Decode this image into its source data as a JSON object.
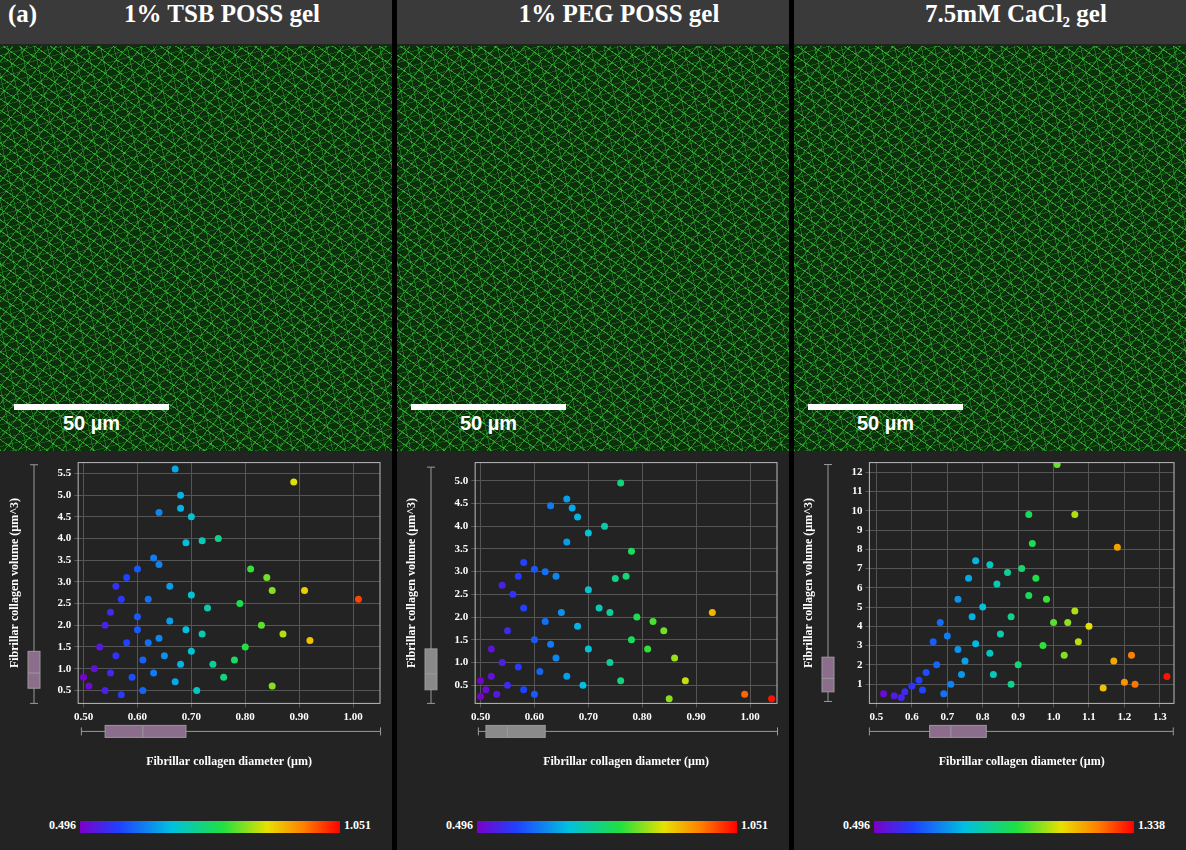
{
  "panel_label": "(a)",
  "images": [
    {
      "title": "1% TSB POSS gel",
      "scale_bar": "50 µm"
    },
    {
      "title": "1% PEG POSS gel",
      "scale_bar": "50 µm"
    },
    {
      "title": "7.5mM CaCl₂ gel",
      "scale_bar": "50 µm"
    }
  ],
  "chart_data": [
    {
      "type": "scatter",
      "marker": "circle",
      "grid": true,
      "color": "#8c6e8c",
      "x_label": "Fibrillar collagen diameter (µm)",
      "y_label": "Fibrillar collagen volume (µm^3)",
      "xlim": [
        0.49,
        1.05
      ],
      "xticks": [
        {
          "value": 0.5,
          "label": "0.50"
        },
        {
          "value": 0.6,
          "label": "0.60"
        },
        {
          "value": 0.7,
          "label": "0.70"
        },
        {
          "value": 0.8,
          "label": "0.80"
        },
        {
          "value": 0.9,
          "label": "0.90"
        },
        {
          "value": 1.0,
          "label": "1.00"
        }
      ],
      "ylim": [
        0.2,
        5.75
      ],
      "yticks": [
        0.5,
        {
          "value": 1.0,
          "label": "1.0"
        },
        1.5,
        {
          "value": 2.0,
          "label": "2.0"
        },
        2.5,
        {
          "value": 3.0,
          "label": "3.0"
        },
        3.5,
        {
          "value": 4.0,
          "label": "4.0"
        },
        4.5,
        {
          "value": 5.0,
          "label": "5.0"
        },
        5.5
      ],
      "x": [
        0.67,
        0.68,
        0.68,
        0.64,
        0.7,
        0.72,
        0.69,
        0.75,
        0.63,
        0.64,
        0.89,
        0.81,
        0.84,
        0.85,
        0.91,
        1.01,
        0.79,
        0.83,
        0.87,
        0.8,
        0.92,
        0.78,
        0.85,
        0.76,
        0.58,
        0.56,
        0.6,
        0.57,
        0.55,
        0.6,
        0.62,
        0.66,
        0.7,
        0.73,
        0.66,
        0.69,
        0.72,
        0.64,
        0.58,
        0.53,
        0.56,
        0.61,
        0.65,
        0.7,
        0.74,
        0.52,
        0.55,
        0.59,
        0.63,
        0.67,
        0.51,
        0.54,
        0.5,
        0.57,
        0.61,
        0.71,
        0.62,
        0.68,
        0.6,
        0.54
      ],
      "values": [
        5.6,
        5.0,
        4.7,
        4.6,
        4.5,
        3.95,
        3.9,
        4.0,
        3.55,
        3.4,
        5.3,
        3.3,
        3.1,
        2.8,
        2.8,
        2.6,
        2.5,
        2.0,
        1.8,
        1.5,
        1.65,
        1.2,
        0.6,
        0.8,
        3.1,
        2.9,
        3.3,
        2.6,
        2.3,
        2.2,
        2.6,
        2.9,
        2.7,
        2.4,
        2.1,
        1.9,
        1.8,
        1.7,
        1.6,
        1.5,
        1.3,
        1.2,
        1.3,
        1.4,
        1.1,
        1.0,
        0.9,
        0.8,
        0.9,
        0.7,
        0.6,
        0.5,
        0.8,
        0.4,
        0.5,
        0.5,
        1.6,
        1.1,
        1.9,
        2.0
      ],
      "x_box": {
        "min": 0.496,
        "q1": 0.54,
        "median": 0.61,
        "q3": 0.69,
        "max": 1.051
      },
      "y_box": {
        "min": 0.2,
        "q1": 0.55,
        "median": 0.9,
        "q3": 1.4,
        "max": 5.7
      },
      "colorbar": {
        "range": [
          0.496,
          1.051
        ],
        "ticks": [
          0.496,
          1.051
        ]
      }
    },
    {
      "type": "scatter",
      "marker": "circle",
      "grid": true,
      "color": "#8a8a8a",
      "x_label": "Fibrillar collagen diameter (µm)",
      "y_label": "Fibrillar collagen volume (µm^3)",
      "xlim": [
        0.49,
        1.05
      ],
      "xticks": [
        {
          "value": 0.5,
          "label": "0.50"
        },
        {
          "value": 0.6,
          "label": "0.60"
        },
        {
          "value": 0.7,
          "label": "0.70"
        },
        {
          "value": 0.8,
          "label": "0.80"
        },
        {
          "value": 0.9,
          "label": "0.90"
        },
        {
          "value": 1.0,
          "label": "1.00"
        }
      ],
      "ylim": [
        0.1,
        5.4
      ],
      "yticks": [
        0.5,
        {
          "value": 1.0,
          "label": "1.0"
        },
        1.5,
        {
          "value": 2.0,
          "label": "2.0"
        },
        2.5,
        {
          "value": 3.0,
          "label": "3.0"
        },
        3.5,
        {
          "value": 4.0,
          "label": "4.0"
        },
        4.5,
        {
          "value": 5.0,
          "label": "5.0"
        }
      ],
      "x": [
        0.66,
        0.67,
        0.68,
        0.63,
        0.7,
        0.73,
        0.76,
        0.78,
        0.66,
        0.6,
        0.62,
        0.64,
        0.75,
        0.77,
        0.7,
        0.72,
        0.74,
        0.79,
        0.82,
        0.84,
        0.93,
        0.86,
        0.81,
        0.88,
        0.99,
        1.04,
        0.78,
        0.68,
        0.65,
        0.62,
        0.58,
        0.56,
        0.55,
        0.6,
        0.63,
        0.7,
        0.74,
        0.52,
        0.54,
        0.57,
        0.61,
        0.66,
        0.5,
        0.51,
        0.53,
        0.52,
        0.55,
        0.58,
        0.5,
        0.6,
        0.64,
        0.69,
        0.54,
        0.58,
        0.57,
        0.85,
        0.76
      ],
      "values": [
        4.6,
        4.4,
        4.2,
        4.45,
        3.85,
        4.0,
        4.95,
        3.45,
        3.65,
        3.05,
        3.0,
        2.9,
        2.85,
        2.9,
        2.6,
        2.2,
        2.1,
        2.0,
        1.9,
        1.7,
        2.1,
        1.1,
        1.3,
        0.6,
        0.3,
        0.2,
        1.5,
        1.8,
        2.1,
        1.9,
        2.2,
        2.5,
        1.7,
        1.5,
        1.4,
        1.3,
        1.0,
        1.3,
        1.0,
        0.9,
        0.8,
        0.7,
        0.6,
        0.4,
        0.3,
        0.7,
        0.5,
        0.4,
        0.25,
        0.3,
        1.1,
        0.5,
        2.7,
        3.2,
        2.9,
        0.2,
        0.6
      ],
      "x_box": {
        "min": 0.496,
        "q1": 0.51,
        "median": 0.55,
        "q3": 0.62,
        "max": 1.051
      },
      "y_box": {
        "min": 0.1,
        "q1": 0.4,
        "median": 0.75,
        "q3": 1.3,
        "max": 5.3
      },
      "colorbar": {
        "range": [
          0.496,
          1.051
        ],
        "ticks": [
          0.496,
          1.051
        ]
      }
    },
    {
      "type": "scatter",
      "marker": "circle",
      "grid": true,
      "color": "#8c6e8c",
      "x_label": "Fibrillar collagen diameter (µm)",
      "y_label": "Fibrillar collagen volume (µm^3)",
      "xlim": [
        0.48,
        1.34
      ],
      "xticks": [
        0.5,
        0.6,
        0.7,
        0.8,
        0.9,
        {
          "value": 1.0,
          "label": "1.0"
        },
        1.1,
        1.2,
        1.3
      ],
      "ylim": [
        0,
        12.5
      ],
      "yticks": [
        1,
        2,
        3,
        4,
        5,
        6,
        7,
        8,
        9,
        10,
        11,
        12
      ],
      "x": [
        0.57,
        0.58,
        0.6,
        0.62,
        0.64,
        0.67,
        0.66,
        0.68,
        0.7,
        0.73,
        0.76,
        0.78,
        0.82,
        0.84,
        0.8,
        0.77,
        0.73,
        0.75,
        0.78,
        0.82,
        0.85,
        0.88,
        0.87,
        0.91,
        0.93,
        0.94,
        0.95,
        0.93,
        0.98,
        1.0,
        1.04,
        1.06,
        1.07,
        1.03,
        0.97,
        0.9,
        0.88,
        0.83,
        1.01,
        1.06,
        1.18,
        1.1,
        1.17,
        1.2,
        1.23,
        1.22,
        1.32,
        0.71,
        0.69,
        0.52,
        0.55,
        0.63,
        0.74,
        1.14
      ],
      "values": [
        0.3,
        0.6,
        0.9,
        1.2,
        1.6,
        2.0,
        3.2,
        4.2,
        3.5,
        5.4,
        6.5,
        7.4,
        7.2,
        6.2,
        5.0,
        4.5,
        2.8,
        2.2,
        3.1,
        2.6,
        3.6,
        4.5,
        6.8,
        7.0,
        9.8,
        8.3,
        6.5,
        5.6,
        5.4,
        4.2,
        4.2,
        4.8,
        3.2,
        2.5,
        3.0,
        2.0,
        1.0,
        1.5,
        12.4,
        9.8,
        8.1,
        4.0,
        2.2,
        1.1,
        1.0,
        2.5,
        1.4,
        1.0,
        0.5,
        0.5,
        0.4,
        0.7,
        1.5,
        0.8
      ],
      "x_box": {
        "min": 0.48,
        "q1": 0.65,
        "median": 0.71,
        "q3": 0.81,
        "max": 1.338
      },
      "y_box": {
        "min": 0.1,
        "q1": 0.6,
        "median": 1.3,
        "q3": 2.4,
        "max": 12.4
      },
      "colorbar": {
        "range": [
          0.496,
          1.338
        ],
        "ticks": [
          0.496,
          1.338
        ]
      }
    }
  ]
}
